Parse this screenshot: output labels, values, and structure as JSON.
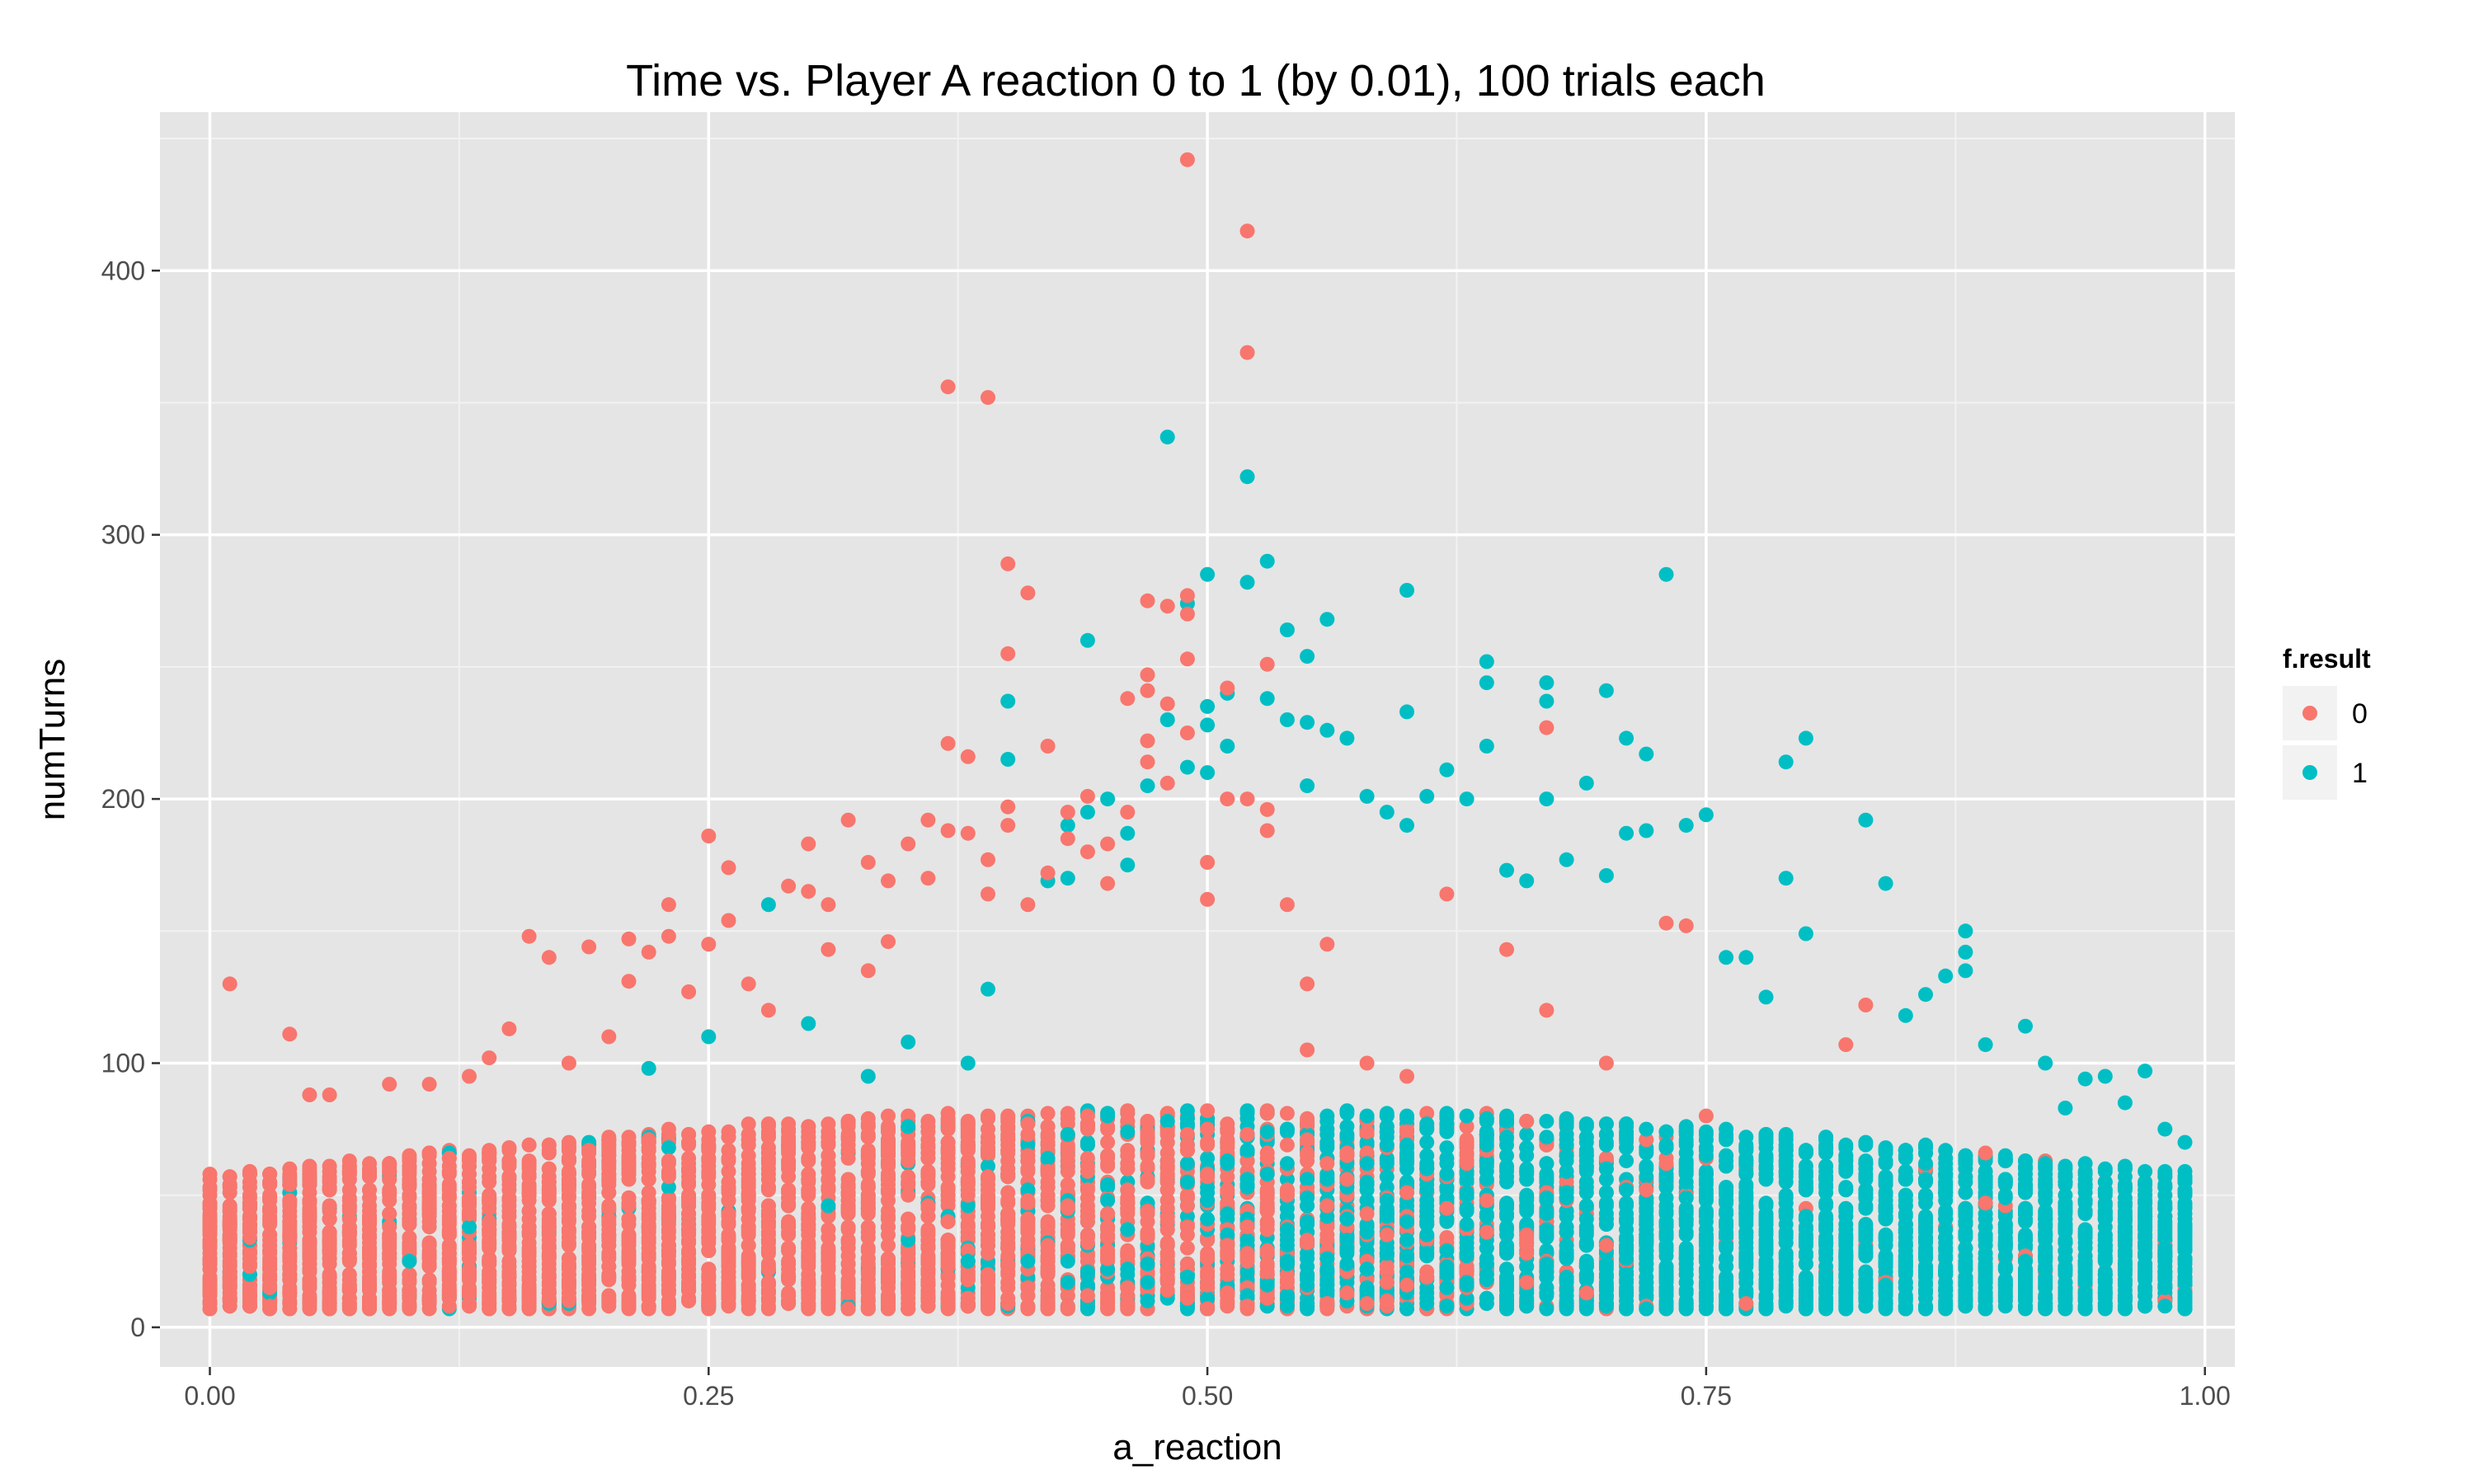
{
  "chart_data": {
    "type": "scatter",
    "title": "Time vs. Player A reaction 0 to 1 (by 0.01), 100 trials each",
    "xlabel": "a_reaction",
    "ylabel": "numTurns",
    "xlim": [
      -0.025,
      1.015
    ],
    "ylim": [
      -15,
      460
    ],
    "x_ticks": [
      0,
      0.25,
      0.5,
      0.75,
      1
    ],
    "x_tick_labels": [
      "0.00",
      "0.25",
      "0.50",
      "0.75",
      "1.00"
    ],
    "y_ticks": [
      0,
      100,
      200,
      300,
      400
    ],
    "y_tick_labels": [
      "0",
      "100",
      "200",
      "300",
      "400"
    ],
    "grid": true,
    "legend": {
      "title": "f.result",
      "placement": "right",
      "entries": [
        {
          "label": "0",
          "color": "#F8766D"
        },
        {
          "label": "1",
          "color": "#00BFC4"
        }
      ]
    },
    "colors": {
      "0": "#F8766D",
      "1": "#00BFC4",
      "panel": "#E5E5E5",
      "grid": "#FFFFFF"
    },
    "x_sweep": {
      "from": 0,
      "to": 0.99,
      "step": 0.01,
      "trials_each": 100
    },
    "series": [
      {
        "name": "0",
        "color": "#F8766D",
        "points": [
          [
            0.01,
            130
          ],
          [
            0.04,
            111
          ],
          [
            0.05,
            88
          ],
          [
            0.06,
            88
          ],
          [
            0.09,
            92
          ],
          [
            0.11,
            92
          ],
          [
            0.13,
            95
          ],
          [
            0.14,
            102
          ],
          [
            0.15,
            113
          ],
          [
            0.16,
            148
          ],
          [
            0.17,
            140
          ],
          [
            0.18,
            100
          ],
          [
            0.19,
            144
          ],
          [
            0.2,
            110
          ],
          [
            0.21,
            147
          ],
          [
            0.21,
            131
          ],
          [
            0.22,
            142
          ],
          [
            0.23,
            160
          ],
          [
            0.23,
            148
          ],
          [
            0.24,
            127
          ],
          [
            0.25,
            186
          ],
          [
            0.25,
            145
          ],
          [
            0.26,
            174
          ],
          [
            0.26,
            154
          ],
          [
            0.27,
            130
          ],
          [
            0.28,
            120
          ],
          [
            0.29,
            167
          ],
          [
            0.3,
            183
          ],
          [
            0.3,
            165
          ],
          [
            0.31,
            160
          ],
          [
            0.31,
            143
          ],
          [
            0.32,
            192
          ],
          [
            0.33,
            176
          ],
          [
            0.33,
            135
          ],
          [
            0.34,
            169
          ],
          [
            0.34,
            146
          ],
          [
            0.35,
            183
          ],
          [
            0.36,
            192
          ],
          [
            0.36,
            170
          ],
          [
            0.37,
            356
          ],
          [
            0.37,
            221
          ],
          [
            0.37,
            188
          ],
          [
            0.38,
            216
          ],
          [
            0.38,
            187
          ],
          [
            0.39,
            352
          ],
          [
            0.39,
            177
          ],
          [
            0.39,
            164
          ],
          [
            0.4,
            289
          ],
          [
            0.4,
            255
          ],
          [
            0.4,
            197
          ],
          [
            0.4,
            190
          ],
          [
            0.41,
            278
          ],
          [
            0.41,
            160
          ],
          [
            0.42,
            220
          ],
          [
            0.42,
            172
          ],
          [
            0.43,
            195
          ],
          [
            0.43,
            185
          ],
          [
            0.44,
            201
          ],
          [
            0.44,
            180
          ],
          [
            0.45,
            183
          ],
          [
            0.45,
            168
          ],
          [
            0.46,
            238
          ],
          [
            0.46,
            195
          ],
          [
            0.47,
            275
          ],
          [
            0.47,
            247
          ],
          [
            0.47,
            241
          ],
          [
            0.47,
            222
          ],
          [
            0.47,
            214
          ],
          [
            0.48,
            273
          ],
          [
            0.48,
            236
          ],
          [
            0.48,
            206
          ],
          [
            0.49,
            442
          ],
          [
            0.49,
            277
          ],
          [
            0.49,
            270
          ],
          [
            0.49,
            253
          ],
          [
            0.49,
            225
          ],
          [
            0.5,
            176
          ],
          [
            0.5,
            162
          ],
          [
            0.51,
            242
          ],
          [
            0.51,
            200
          ],
          [
            0.52,
            415
          ],
          [
            0.52,
            369
          ],
          [
            0.52,
            200
          ],
          [
            0.53,
            251
          ],
          [
            0.53,
            196
          ],
          [
            0.53,
            188
          ],
          [
            0.54,
            160
          ],
          [
            0.55,
            130
          ],
          [
            0.55,
            105
          ],
          [
            0.56,
            145
          ],
          [
            0.58,
            100
          ],
          [
            0.6,
            95
          ],
          [
            0.62,
            164
          ],
          [
            0.65,
            143
          ],
          [
            0.67,
            227
          ],
          [
            0.67,
            120
          ],
          [
            0.7,
            100
          ],
          [
            0.73,
            153
          ],
          [
            0.74,
            152
          ],
          [
            0.75,
            80
          ],
          [
            0.77,
            60
          ],
          [
            0.8,
            45
          ],
          [
            0.82,
            107
          ],
          [
            0.83,
            122
          ],
          [
            0.86,
            60
          ],
          [
            0.9,
            46
          ],
          [
            0.92,
            63
          ],
          [
            0.95,
            47
          ],
          [
            0.99,
            57
          ]
        ]
      },
      {
        "name": "1",
        "color": "#00BFC4",
        "points": [
          [
            0.02,
            33
          ],
          [
            0.1,
            25
          ],
          [
            0.22,
            98
          ],
          [
            0.25,
            110
          ],
          [
            0.28,
            160
          ],
          [
            0.3,
            115
          ],
          [
            0.33,
            95
          ],
          [
            0.35,
            108
          ],
          [
            0.38,
            100
          ],
          [
            0.39,
            128
          ],
          [
            0.4,
            237
          ],
          [
            0.4,
            215
          ],
          [
            0.42,
            169
          ],
          [
            0.43,
            190
          ],
          [
            0.43,
            170
          ],
          [
            0.44,
            260
          ],
          [
            0.44,
            195
          ],
          [
            0.45,
            200
          ],
          [
            0.46,
            187
          ],
          [
            0.46,
            175
          ],
          [
            0.47,
            205
          ],
          [
            0.48,
            337
          ],
          [
            0.48,
            230
          ],
          [
            0.49,
            274
          ],
          [
            0.49,
            212
          ],
          [
            0.5,
            285
          ],
          [
            0.5,
            235
          ],
          [
            0.5,
            228
          ],
          [
            0.5,
            210
          ],
          [
            0.51,
            240
          ],
          [
            0.51,
            220
          ],
          [
            0.52,
            322
          ],
          [
            0.52,
            282
          ],
          [
            0.53,
            290
          ],
          [
            0.53,
            238
          ],
          [
            0.54,
            264
          ],
          [
            0.54,
            230
          ],
          [
            0.55,
            254
          ],
          [
            0.55,
            229
          ],
          [
            0.55,
            205
          ],
          [
            0.56,
            268
          ],
          [
            0.56,
            226
          ],
          [
            0.57,
            223
          ],
          [
            0.58,
            201
          ],
          [
            0.59,
            195
          ],
          [
            0.6,
            279
          ],
          [
            0.6,
            233
          ],
          [
            0.6,
            190
          ],
          [
            0.61,
            201
          ],
          [
            0.62,
            211
          ],
          [
            0.63,
            200
          ],
          [
            0.64,
            252
          ],
          [
            0.64,
            244
          ],
          [
            0.64,
            220
          ],
          [
            0.65,
            173
          ],
          [
            0.66,
            169
          ],
          [
            0.67,
            244
          ],
          [
            0.67,
            237
          ],
          [
            0.67,
            200
          ],
          [
            0.68,
            177
          ],
          [
            0.69,
            206
          ],
          [
            0.7,
            241
          ],
          [
            0.7,
            171
          ],
          [
            0.71,
            223
          ],
          [
            0.71,
            187
          ],
          [
            0.72,
            217
          ],
          [
            0.72,
            188
          ],
          [
            0.73,
            285
          ],
          [
            0.74,
            190
          ],
          [
            0.75,
            194
          ],
          [
            0.76,
            140
          ],
          [
            0.77,
            140
          ],
          [
            0.78,
            125
          ],
          [
            0.79,
            214
          ],
          [
            0.79,
            170
          ],
          [
            0.8,
            223
          ],
          [
            0.8,
            149
          ],
          [
            0.83,
            192
          ],
          [
            0.84,
            168
          ],
          [
            0.85,
            118
          ],
          [
            0.86,
            126
          ],
          [
            0.87,
            133
          ],
          [
            0.88,
            150
          ],
          [
            0.88,
            142
          ],
          [
            0.88,
            135
          ],
          [
            0.89,
            107
          ],
          [
            0.91,
            114
          ],
          [
            0.92,
            100
          ],
          [
            0.93,
            83
          ],
          [
            0.94,
            94
          ],
          [
            0.95,
            95
          ],
          [
            0.96,
            85
          ],
          [
            0.97,
            97
          ],
          [
            0.98,
            75
          ],
          [
            0.99,
            70
          ]
        ]
      }
    ]
  }
}
